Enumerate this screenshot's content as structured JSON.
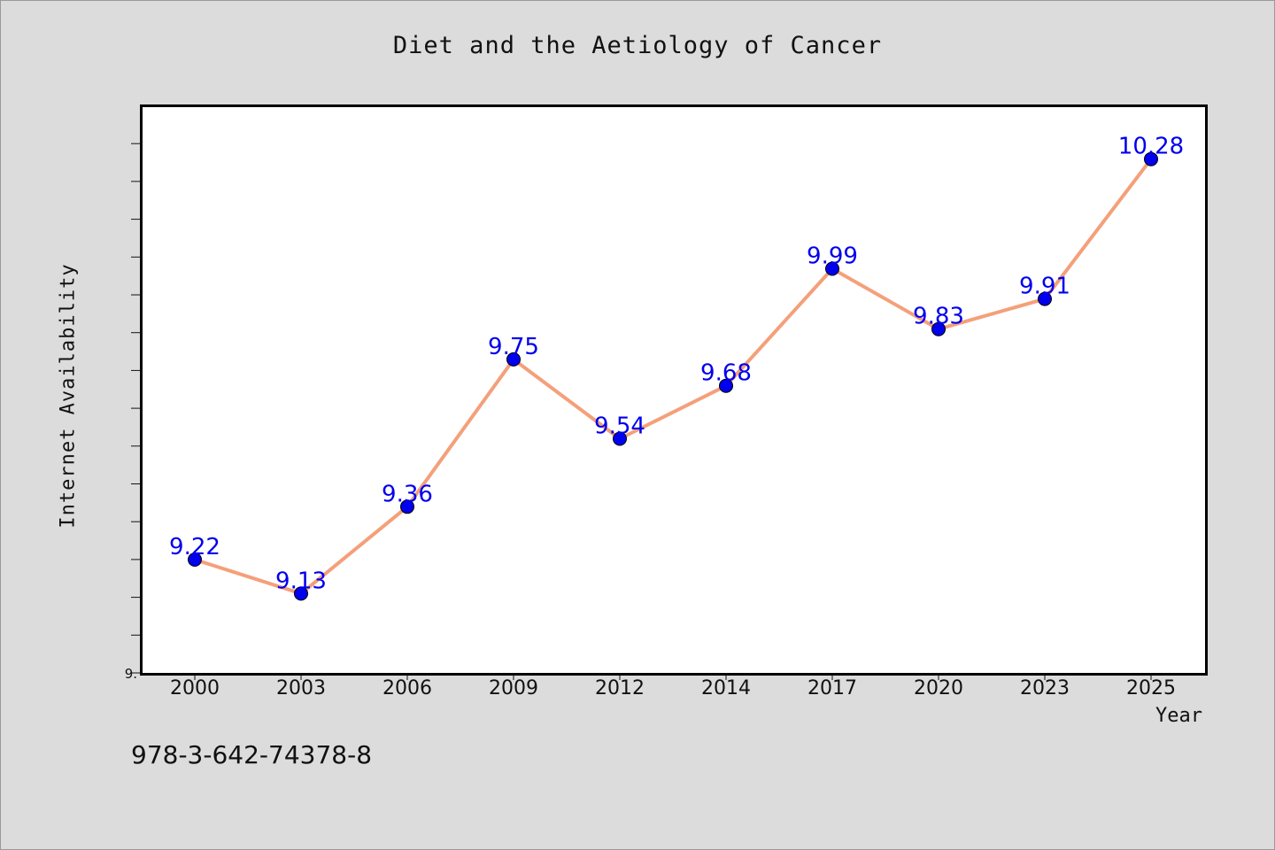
{
  "chart_data": {
    "type": "line",
    "title": "Diet and the Aetiology of Cancer",
    "xlabel": "Year",
    "ylabel": "Internet Availability",
    "categories": [
      "2000",
      "2003",
      "2006",
      "2009",
      "2012",
      "2014",
      "2017",
      "2020",
      "2023",
      "2025"
    ],
    "series": [
      {
        "values": [
          9.22,
          9.13,
          9.36,
          9.75,
          9.54,
          9.68,
          9.99,
          9.83,
          9.91,
          10.28
        ]
      }
    ],
    "data_labels": [
      "9.22",
      "9.13",
      "9.36",
      "9.75",
      "9.54",
      "9.68",
      "9.99",
      "9.83",
      "9.91",
      "10.28"
    ],
    "ylim": [
      8.92,
      10.42
    ],
    "ytick_label": "9.",
    "grid": false,
    "line_color": "#f4a07a",
    "marker_color": "#0000ee",
    "label_color": "#0000ee"
  },
  "footer": {
    "isbn": "978-3-642-74378-8"
  }
}
